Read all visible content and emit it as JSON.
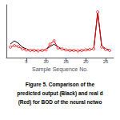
{
  "chart_data": {
    "type": "line",
    "xlabel": "Sample Sequence No.",
    "x": [
      1,
      2,
      3,
      4,
      5,
      6,
      7,
      8,
      9,
      10,
      11,
      12,
      13,
      14,
      15,
      16,
      17,
      18,
      19,
      20,
      21,
      22,
      23,
      24,
      25,
      26
    ],
    "series": [
      {
        "color": "#000000",
        "marker": "none",
        "values": [
          2.8,
          3.5,
          3.0,
          2.2,
          1.8,
          1.5,
          1.6,
          1.4,
          1.5,
          1.7,
          2.3,
          2.8,
          2.2,
          1.8,
          1.6,
          1.5,
          1.5,
          1.4,
          1.5,
          1.6,
          1.7,
          1.8,
          9.5,
          2.5,
          1.8,
          1.6
        ]
      },
      {
        "color": "#ff0000",
        "marker": "circle",
        "values": [
          2.2,
          2.5,
          2.3,
          1.8,
          1.6,
          1.5,
          1.5,
          1.4,
          1.5,
          1.6,
          2.8,
          3.5,
          2.0,
          1.8,
          1.6,
          1.5,
          1.5,
          1.4,
          1.5,
          1.6,
          1.7,
          1.8,
          9.5,
          2.2,
          1.7,
          1.5
        ]
      }
    ],
    "xlim": [
      0,
      27
    ],
    "xticks": [
      5,
      10,
      15,
      20,
      25
    ],
    "ylim": [
      0,
      11
    ],
    "yticks": [],
    "tick_labels": "x",
    "grid": false,
    "annotations": [
      "Figure 5. Comparison of the",
      "predicted output (Black) and real d",
      "(Red) for BOD of the neural netwo"
    ]
  }
}
